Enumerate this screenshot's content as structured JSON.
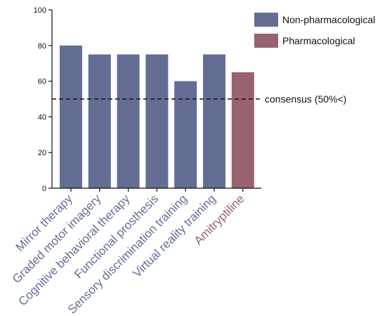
{
  "chart_data": {
    "type": "bar",
    "title": "",
    "xlabel": "",
    "ylabel": "",
    "ylim": [
      0,
      100
    ],
    "yticks": [
      0,
      20,
      40,
      60,
      80,
      100
    ],
    "grid": false,
    "legend_position": "top-right",
    "categories": [
      "Mirror therapy",
      "Graded motor imagery",
      "Cognitive behavioral therapy",
      "Functional prosthesis",
      "Sensory discrimination training",
      "Virtual reality training",
      "Amitryptiline"
    ],
    "values": [
      80,
      75,
      75,
      75,
      60,
      75,
      65
    ],
    "groups": [
      "Non-pharmacological",
      "Non-pharmacological",
      "Non-pharmacological",
      "Non-pharmacological",
      "Non-pharmacological",
      "Non-pharmacological",
      "Pharmacological"
    ],
    "legend": [
      {
        "name": "Non-pharmacological",
        "color": "#646e94"
      },
      {
        "name": "Pharmacological",
        "color": "#98626e"
      }
    ],
    "reference_line": {
      "value": 50,
      "label": "consensus (50%<)",
      "style": "dashed"
    }
  }
}
